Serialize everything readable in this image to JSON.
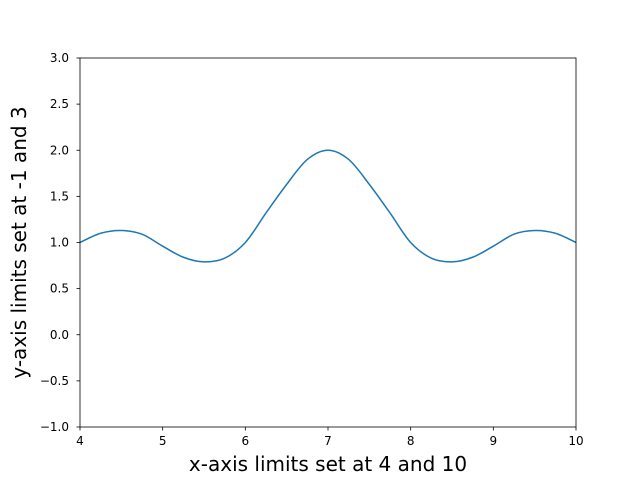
{
  "chart_data": {
    "type": "line",
    "title": "",
    "xlabel": "x-axis limits set at 4 and 10",
    "ylabel": "y-axis limits set at -1 and 3",
    "xlim": [
      4,
      10
    ],
    "ylim": [
      -1,
      3
    ],
    "grid": false,
    "x_ticks": [
      "4",
      "5",
      "6",
      "7",
      "8",
      "9",
      "10"
    ],
    "y_ticks": [
      "−1.0",
      "−0.5",
      "0.0",
      "0.5",
      "1.0",
      "1.5",
      "2.0",
      "2.5",
      "3.0"
    ],
    "line_color": "#1f77b4",
    "series": [
      {
        "x": [
          4.0,
          4.25,
          4.5,
          4.75,
          5.0,
          5.25,
          5.5,
          5.75,
          6.0,
          6.25,
          6.5,
          6.75,
          7.0,
          7.25,
          7.5,
          7.75,
          8.0,
          8.25,
          8.5,
          8.75,
          9.0,
          9.25,
          9.5,
          9.75,
          10.0
        ],
        "y": [
          1.0,
          1.1,
          1.13,
          1.09,
          0.96,
          0.84,
          0.79,
          0.83,
          1.0,
          1.32,
          1.63,
          1.9,
          2.0,
          1.9,
          1.63,
          1.32,
          1.0,
          0.83,
          0.79,
          0.84,
          0.96,
          1.09,
          1.13,
          1.1,
          1.0
        ]
      }
    ]
  }
}
